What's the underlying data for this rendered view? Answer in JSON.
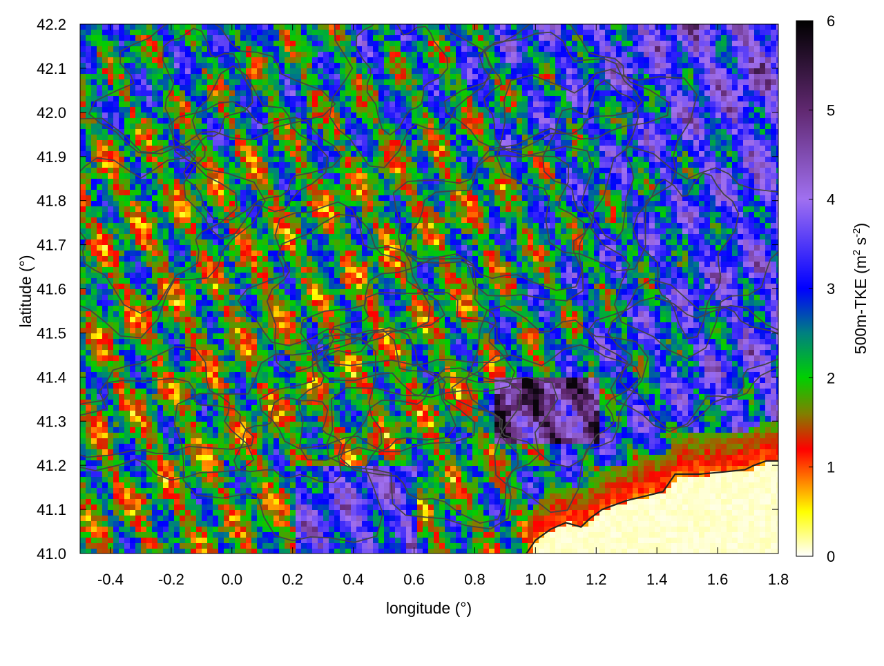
{
  "chart_data": {
    "type": "heatmap",
    "xlabel": "longitude (°)",
    "ylabel": "latitude (°)",
    "colorbar_label": "500m-TKE (m² s⁻²)",
    "colorbar_label_parts": {
      "main": "500m-TKE (m",
      "sup1": "2",
      "mid": " s",
      "sup2": "-2",
      "end": ")"
    },
    "xlim": [
      -0.5,
      1.8
    ],
    "ylim": [
      41.0,
      42.2
    ],
    "clim": [
      0,
      6
    ],
    "x_ticks": [
      -0.4,
      -0.2,
      0.0,
      0.2,
      0.4,
      0.6,
      0.8,
      1.0,
      1.2,
      1.4,
      1.6,
      1.8
    ],
    "x_tick_labels": [
      "-0.4",
      "-0.2",
      "0.0",
      "0.2",
      "0.4",
      "0.6",
      "0.8",
      "1.0",
      "1.2",
      "1.4",
      "1.6",
      "1.8"
    ],
    "y_ticks": [
      41.0,
      41.1,
      41.2,
      41.3,
      41.4,
      41.5,
      41.6,
      41.7,
      41.8,
      41.9,
      42.0,
      42.1,
      42.2
    ],
    "y_tick_labels": [
      "41.0",
      "41.1",
      "41.2",
      "41.3",
      "41.4",
      "41.5",
      "41.6",
      "41.7",
      "41.8",
      "41.9",
      "42.0",
      "42.1",
      "42.2"
    ],
    "colorbar_ticks": [
      0,
      1,
      2,
      3,
      4,
      5,
      6
    ],
    "colorbar_tick_labels": [
      "0",
      "1",
      "2",
      "3",
      "4",
      "5",
      "6"
    ],
    "colormap": [
      {
        "v": 0.0,
        "color": "#ffffff"
      },
      {
        "v": 0.5,
        "color": "#ffff00"
      },
      {
        "v": 0.85,
        "color": "#ff8000"
      },
      {
        "v": 1.2,
        "color": "#ff0000"
      },
      {
        "v": 1.6,
        "color": "#808000"
      },
      {
        "v": 2.0,
        "color": "#00d000"
      },
      {
        "v": 2.5,
        "color": "#008080"
      },
      {
        "v": 3.0,
        "color": "#0000ff"
      },
      {
        "v": 4.0,
        "color": "#a070f0"
      },
      {
        "v": 5.0,
        "color": "#602870"
      },
      {
        "v": 6.0,
        "color": "#000000"
      }
    ],
    "coastline": [
      [
        0.97,
        41.0
      ],
      [
        1.0,
        41.03
      ],
      [
        1.05,
        41.055
      ],
      [
        1.1,
        41.07
      ],
      [
        1.15,
        41.06
      ],
      [
        1.18,
        41.08
      ],
      [
        1.22,
        41.1
      ],
      [
        1.3,
        41.12
      ],
      [
        1.36,
        41.13
      ],
      [
        1.42,
        41.14
      ],
      [
        1.46,
        41.18
      ],
      [
        1.54,
        41.18
      ],
      [
        1.62,
        41.185
      ],
      [
        1.69,
        41.19
      ],
      [
        1.72,
        41.2
      ],
      [
        1.76,
        41.21
      ],
      [
        1.8,
        41.21
      ]
    ],
    "sea_region": "south-east of coastline",
    "topography_contours": "dark grey contour lines over land",
    "colors": {
      "contour": "#444444",
      "coastline": "#222222",
      "sea": "#fffef2"
    },
    "grid": false
  }
}
